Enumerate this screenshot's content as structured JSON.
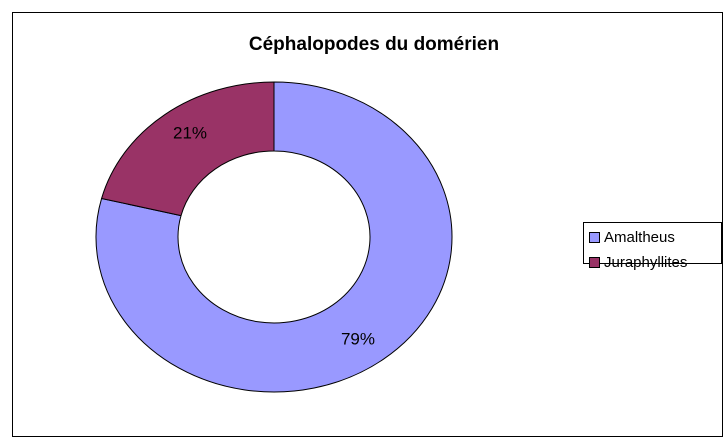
{
  "chart_data": {
    "type": "donut",
    "title": "Céphalopodes du domérien",
    "categories": [
      "Amaltheus",
      "Juraphyllites"
    ],
    "values": [
      79,
      21
    ],
    "value_labels": [
      "79%",
      "21%"
    ],
    "colors": [
      "#9999ff",
      "#993366"
    ],
    "legend": "right"
  }
}
